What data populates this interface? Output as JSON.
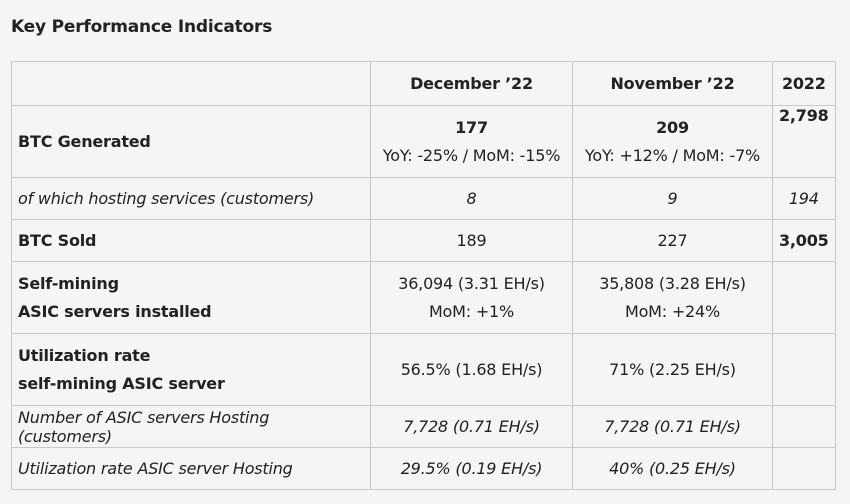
{
  "title": "Key Performance Indicators",
  "headers": [
    "",
    "December ’22",
    "November ’22",
    "2022"
  ],
  "rows": [
    {
      "label_lines": [
        "BTC Generated"
      ],
      "dec": [
        "177",
        "YoY: -25% / MoM: -15%"
      ],
      "nov": [
        "209",
        "YoY: +12% / MoM: -7%"
      ],
      "year": "2,798"
    },
    {
      "label_lines": [
        "of which hosting services (customers)"
      ],
      "dec": [
        "8"
      ],
      "nov": [
        "9"
      ],
      "year": "194"
    },
    {
      "label_lines": [
        "BTC Sold"
      ],
      "dec": [
        "189"
      ],
      "nov": [
        "227"
      ],
      "year": "3,005"
    },
    {
      "label_lines": [
        "Self-mining",
        "ASIC servers installed"
      ],
      "dec": [
        "36,094 (3.31 EH/s)",
        "MoM: +1%"
      ],
      "nov": [
        "35,808 (3.28 EH/s)",
        "MoM: +24%"
      ],
      "year": ""
    },
    {
      "label_lines": [
        "Utilization rate",
        "self-mining ASIC server"
      ],
      "dec": [
        "56.5% (1.68 EH/s)"
      ],
      "nov": [
        "71% (2.25 EH/s)"
      ],
      "year": ""
    },
    {
      "label_lines": [
        "Number of ASIC servers Hosting (customers)"
      ],
      "dec": [
        "7,728 (0.71 EH/s)"
      ],
      "nov": [
        "7,728 (0.71 EH/s)"
      ],
      "year": ""
    },
    {
      "label_lines": [
        "Utilization rate ASIC server Hosting"
      ],
      "dec": [
        "29.5% (0.19 EH/s)"
      ],
      "nov": [
        "40% (0.25 EH/s)"
      ],
      "year": ""
    }
  ]
}
